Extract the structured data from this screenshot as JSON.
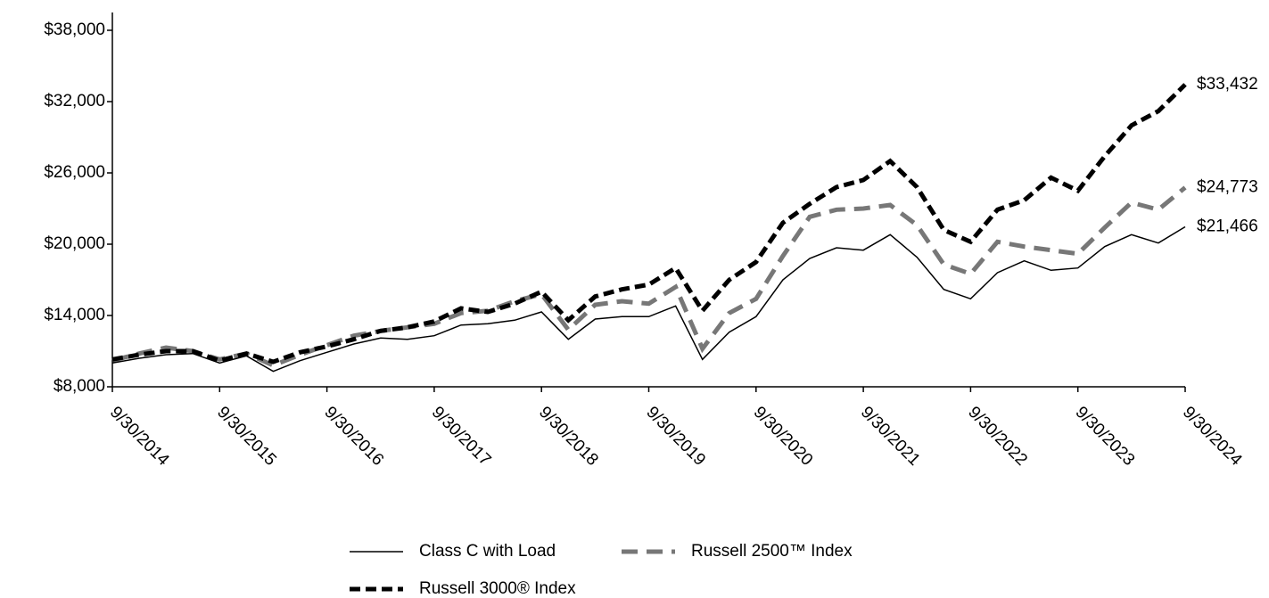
{
  "chart_data": {
    "type": "line",
    "x": [
      0,
      3,
      6,
      9,
      12,
      15,
      18,
      21,
      24,
      27,
      30,
      33,
      36,
      39,
      42,
      45,
      48,
      51,
      54,
      57,
      60,
      63,
      66,
      69,
      72,
      75,
      78,
      81,
      84,
      87,
      90,
      93,
      96,
      99,
      102,
      105,
      108,
      111,
      114,
      117,
      120
    ],
    "xlim": [
      0,
      120
    ],
    "xticks": [
      {
        "value": 0,
        "label": "9/30/2014"
      },
      {
        "value": 12,
        "label": "9/30/2015"
      },
      {
        "value": 24,
        "label": "9/30/2016"
      },
      {
        "value": 36,
        "label": "9/30/2017"
      },
      {
        "value": 48,
        "label": "9/30/2018"
      },
      {
        "value": 60,
        "label": "9/30/2019"
      },
      {
        "value": 72,
        "label": "9/30/2020"
      },
      {
        "value": 84,
        "label": "9/30/2021"
      },
      {
        "value": 96,
        "label": "9/30/2022"
      },
      {
        "value": 108,
        "label": "9/30/2023"
      },
      {
        "value": 120,
        "label": "9/30/2024"
      }
    ],
    "ylim": [
      8000,
      39500
    ],
    "yticks": [
      {
        "value": 8000,
        "label": "$8,000"
      },
      {
        "value": 14000,
        "label": "$14,000"
      },
      {
        "value": 20000,
        "label": "$20,000"
      },
      {
        "value": 26000,
        "label": "$26,000"
      },
      {
        "value": 32000,
        "label": "$32,000"
      },
      {
        "value": 38000,
        "label": "$38,000"
      }
    ],
    "series": [
      {
        "name": "Class C with Load",
        "color": "#000000",
        "style": "solid",
        "values": [
          10000,
          10400,
          10700,
          10800,
          10000,
          10600,
          9300,
          10200,
          10900,
          11600,
          12100,
          12000,
          12300,
          13200,
          13300,
          13600,
          14300,
          12000,
          13700,
          13900,
          13900,
          14800,
          10300,
          12600,
          13900,
          17000,
          18800,
          19700,
          19500,
          20800,
          18900,
          16200,
          15400,
          17600,
          18600,
          17800,
          18000,
          19800,
          20800,
          20100,
          21466
        ],
        "value_labels": [
          null,
          null,
          null,
          null,
          null,
          null,
          null,
          null,
          null,
          null,
          null,
          null,
          null,
          null,
          null,
          null,
          null,
          null,
          null,
          null,
          null,
          null,
          null,
          null,
          null,
          null,
          null,
          null,
          null,
          null,
          null,
          null,
          null,
          null,
          null,
          null,
          null,
          null,
          null,
          null,
          "$21,466"
        ]
      },
      {
        "name": "Russell 2500™ Index",
        "color": "#777777",
        "style": "dashed",
        "values": [
          10200,
          10800,
          11300,
          11000,
          10300,
          10800,
          9800,
          10700,
          11500,
          12300,
          12700,
          13000,
          13300,
          14200,
          14400,
          15200,
          15800,
          12800,
          14900,
          15200,
          15000,
          16400,
          11200,
          14200,
          15400,
          19000,
          22300,
          22900,
          23000,
          23300,
          21600,
          18300,
          17500,
          20200,
          19800,
          19500,
          19200,
          21400,
          23500,
          22900,
          24773
        ],
        "value_labels": [
          null,
          null,
          null,
          null,
          null,
          null,
          null,
          null,
          null,
          null,
          null,
          null,
          null,
          null,
          null,
          null,
          null,
          null,
          null,
          null,
          null,
          null,
          null,
          null,
          null,
          null,
          null,
          null,
          null,
          null,
          null,
          null,
          null,
          null,
          null,
          null,
          null,
          null,
          null,
          null,
          "$24,773"
        ]
      },
      {
        "name": "Russell 3000® Index",
        "color": "#000000",
        "style": "dashed",
        "values": [
          10300,
          10700,
          11000,
          11000,
          10200,
          10800,
          10100,
          10900,
          11400,
          12000,
          12700,
          13000,
          13500,
          14600,
          14300,
          15000,
          16000,
          13600,
          15600,
          16200,
          16600,
          18000,
          14400,
          17000,
          18500,
          21800,
          23400,
          24800,
          25400,
          27000,
          24800,
          21200,
          20200,
          22900,
          23700,
          25600,
          24500,
          27400,
          30000,
          31200,
          33432
        ],
        "value_labels": [
          null,
          null,
          null,
          null,
          null,
          null,
          null,
          null,
          null,
          null,
          null,
          null,
          null,
          null,
          null,
          null,
          null,
          null,
          null,
          null,
          null,
          null,
          null,
          null,
          null,
          null,
          null,
          null,
          null,
          null,
          null,
          null,
          null,
          null,
          null,
          null,
          null,
          null,
          null,
          null,
          "$33,432"
        ]
      }
    ]
  }
}
